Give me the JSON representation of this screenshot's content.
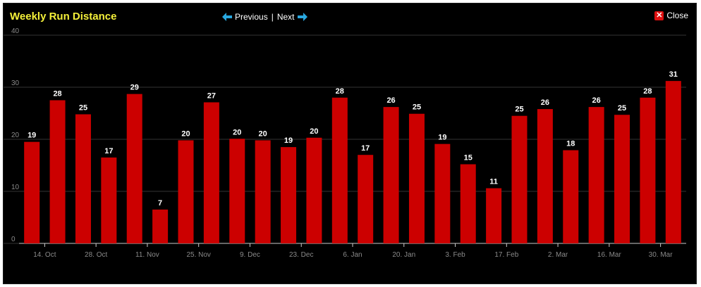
{
  "window": {
    "title": "Weekly Run Distance",
    "nav_previous": "Previous",
    "nav_separator": "|",
    "nav_next": "Next",
    "close_label": "Close",
    "close_glyph": "✕"
  },
  "colors": {
    "background": "#000000",
    "title": "#f4f03a",
    "bar": "#cc0000",
    "gridline": "#333333",
    "axis_text": "#8a8a8a",
    "nav_arrow": "#29a8e0"
  },
  "icons": {
    "previous": "arrow-left-icon",
    "next": "arrow-right-icon",
    "close": "close-icon"
  },
  "chart_data": {
    "type": "bar",
    "title": "Weekly Run Distance",
    "ylim": [
      0,
      40
    ],
    "yticks": [
      0,
      10,
      20,
      30,
      40
    ],
    "grid": true,
    "values": [
      19.5,
      27.5,
      24.8,
      16.5,
      28.7,
      6.5,
      19.8,
      27.1,
      20.1,
      19.8,
      18.5,
      20.3,
      28.0,
      17.0,
      26.2,
      24.9,
      19.1,
      15.2,
      10.6,
      24.5,
      25.8,
      17.9,
      26.2,
      24.7,
      28.0,
      31.2
    ],
    "labels": [
      "19",
      "28",
      "25",
      "17",
      "29",
      "7",
      "20",
      "27",
      "20",
      "20",
      "19",
      "20",
      "28",
      "17",
      "26",
      "25",
      "19",
      "15",
      "11",
      "25",
      "26",
      "18",
      "26",
      "25",
      "28",
      "31"
    ],
    "x_tick_labels": [
      "14. Oct",
      "28. Oct",
      "11. Nov",
      "25. Nov",
      "9. Dec",
      "23. Dec",
      "6. Jan",
      "20. Jan",
      "3. Feb",
      "17. Feb",
      "2. Mar",
      "16. Mar",
      "30. Mar"
    ],
    "x_tick_bar_index": [
      1,
      3,
      5,
      7,
      9,
      11,
      13,
      15,
      17,
      19,
      21,
      23,
      25
    ]
  }
}
